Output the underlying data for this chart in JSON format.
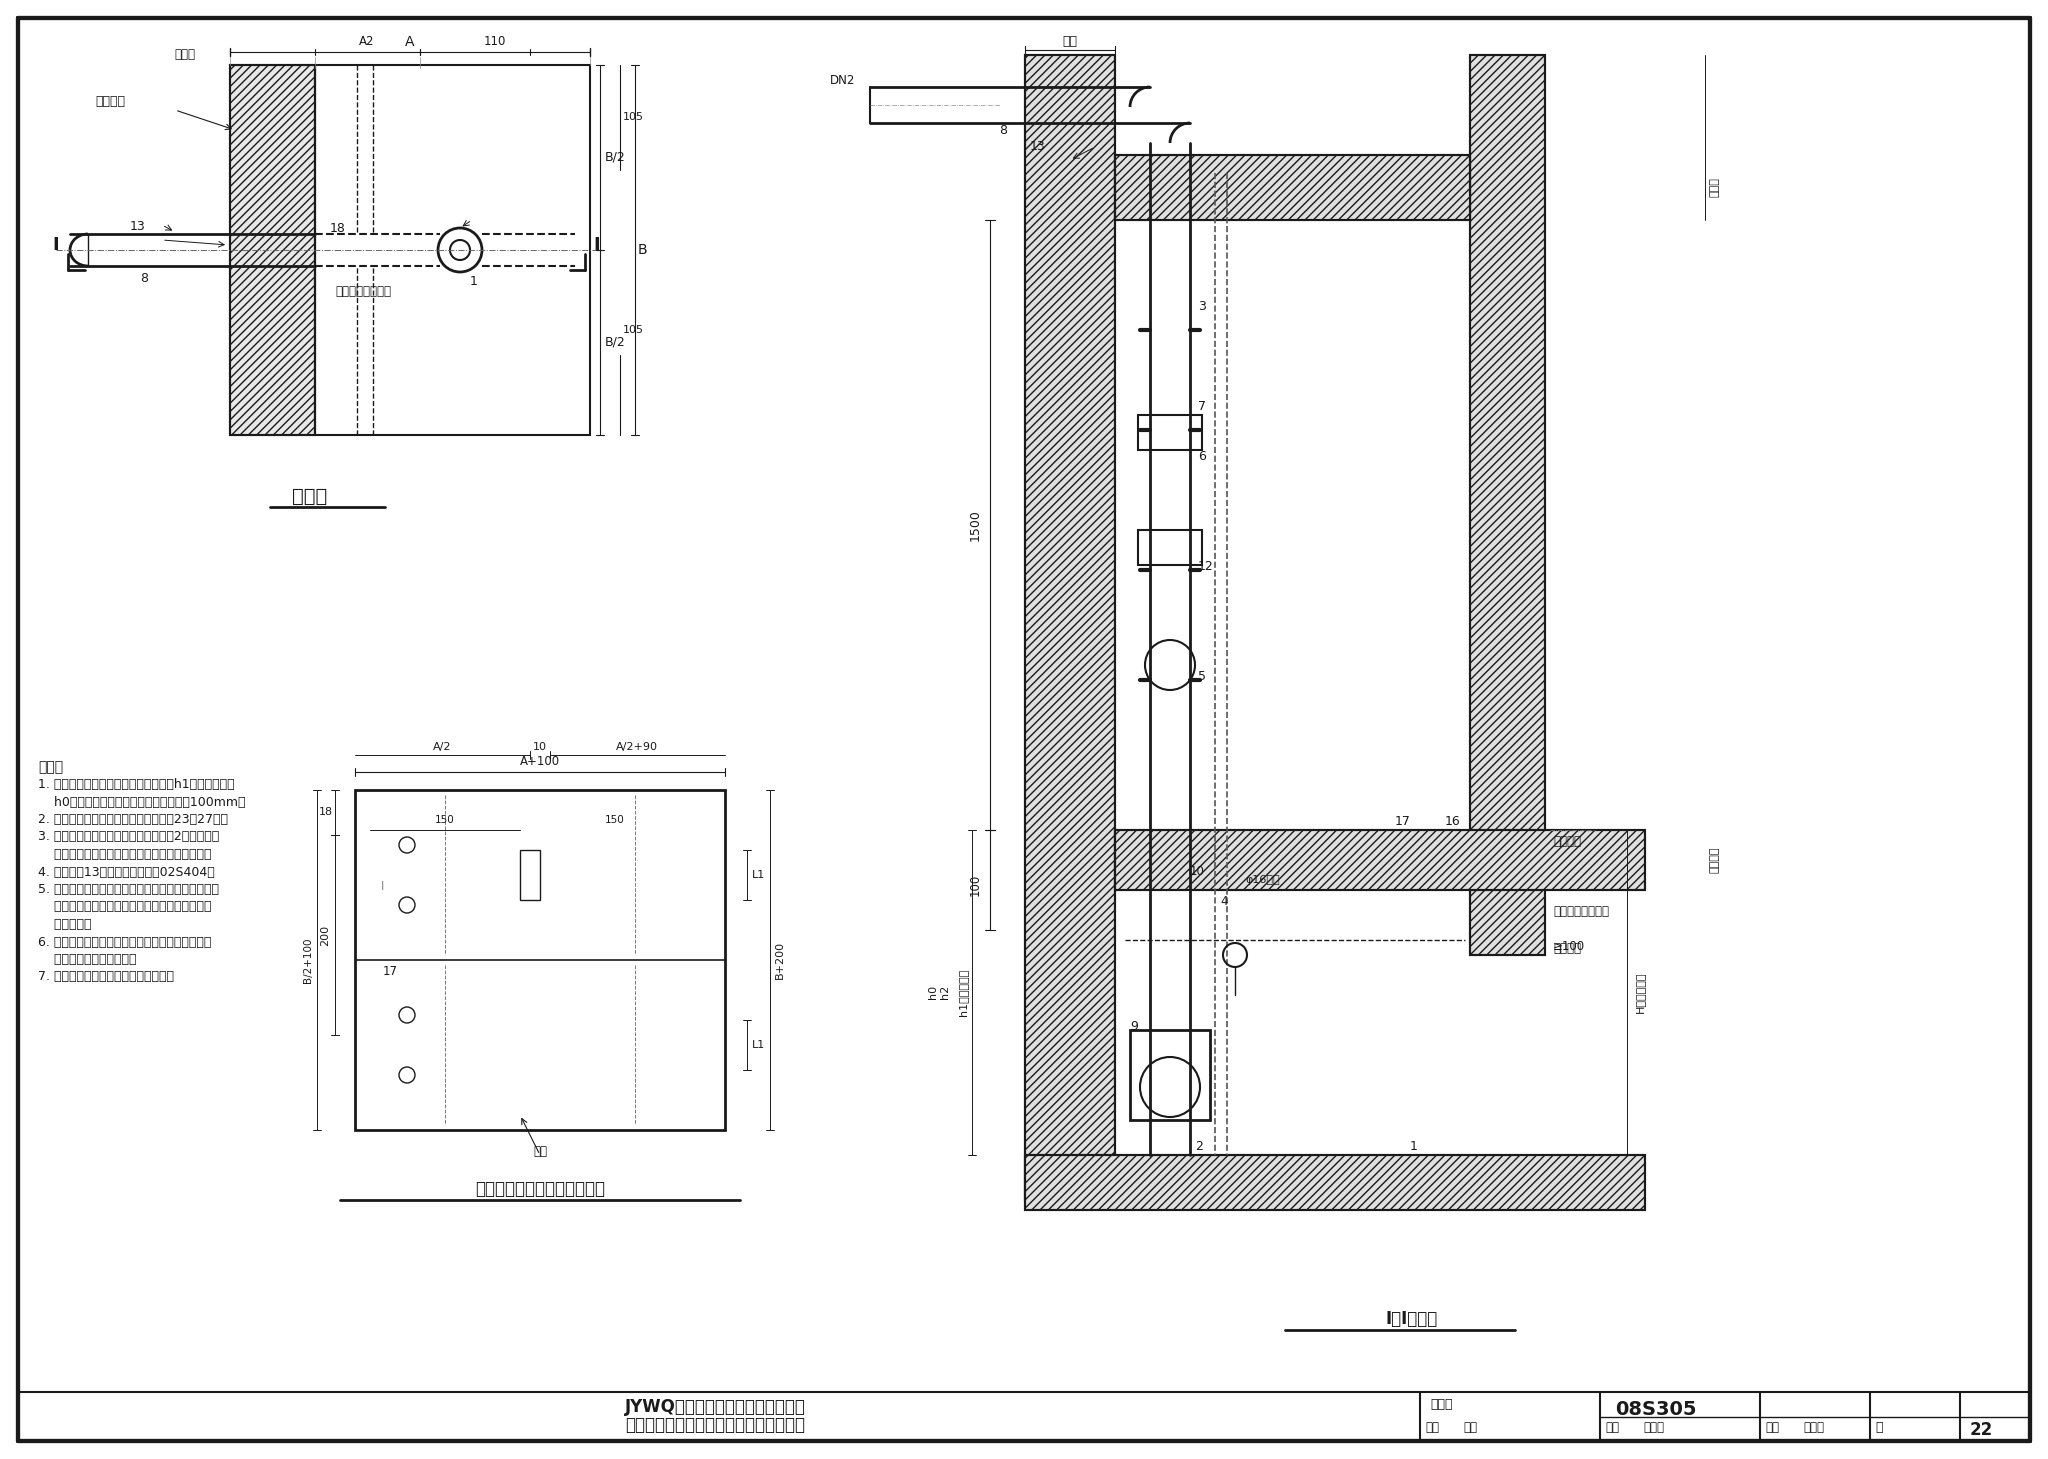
{
  "bg": "#f5f5f0",
  "lc": "#1a1a1a",
  "title1": "JYWQ系列自动搅匀潜水排污泵单泵",
  "title2": "硬管连接固定式安装（钢筋混凝土盖板）",
  "fig_no": "08S305",
  "page": "22",
  "plan_title": "平面图",
  "cover_plan_title": "集水坑钢筋混凝土盖板平面图",
  "section_title": "I－I剖面图",
  "notes_title": "说明：",
  "notes": [
    "1. 本图潜水排污泵采用液位自动控制，h1为开泵水位，",
    "    h0为停泵水位，报警水位高出开泵水位100mm。",
    "2. 设备材料表、安装尺寸表详见本图集23、27页。",
    "3. 污水池（集水坑）钢筋混凝土盖板为2块预制。板",
    "    厚、配筋、吊环及洞口处理由相关专业设计定。",
    "4. 防水套管13制作安装详见国标02S404。",
    "5. 潜水排污泵控制柜安装位置由单项工程设计考虑，",
    "    其型号规格可由泵厂配套供应，池外电线电缆应",
    "    穿管敷设。",
    "6. 污水池（集水坑）进水管数量、位置、管径及标",
    "    高由单项工程设计确定。",
    "7. 本图适用于较清洁污（废）水提升。"
  ]
}
